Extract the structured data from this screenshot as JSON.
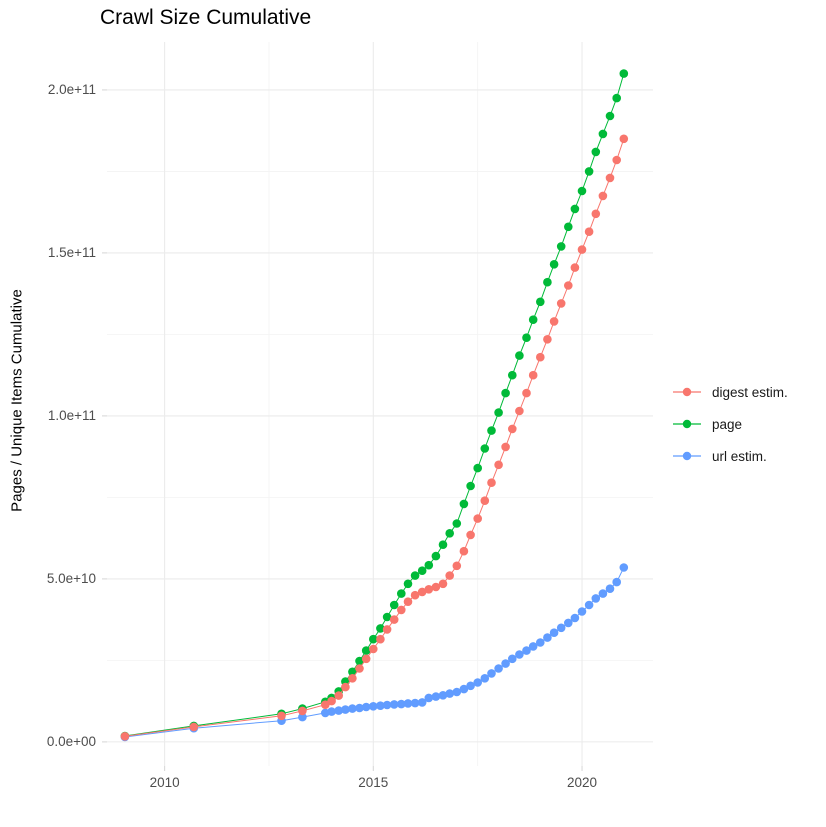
{
  "chart_data": {
    "type": "line",
    "title": "Crawl Size Cumulative",
    "xlabel": "",
    "ylabel": "Pages / Unique Items Cumulative",
    "legend_position": "right",
    "grid": true,
    "xlim": [
      2008.62,
      2021.7
    ],
    "ylim": [
      -7400000000.0,
      214700000000.0
    ],
    "x_ticks": {
      "values": [
        2010,
        2015,
        2020
      ],
      "labels": [
        "2010",
        "2015",
        "2020"
      ],
      "minor": [
        2012.5,
        2017.5
      ]
    },
    "y_ticks": {
      "values": [
        0,
        50000000000.0,
        100000000000.0,
        150000000000.0,
        200000000000.0
      ],
      "labels": [
        "0.0e+00",
        "5.0e+10",
        "1.0e+11",
        "1.5e+11",
        "2.0e+11"
      ],
      "minor": [
        25000000000.0,
        75000000000.0,
        125000000000.0,
        175000000000.0
      ]
    },
    "style": {
      "grid_major_color": "#EBEBEB",
      "grid_minor_color": "#F3F3F3",
      "tick_color": "#D9D9D9",
      "tick_text_color": "#4D4D4D",
      "title_color": "#000000",
      "background": "#FFFFFF"
    },
    "series": [
      {
        "name": "digest estim.",
        "color": "#F8766D",
        "points": [
          [
            2009.05,
            1700000000.0
          ],
          [
            2010.7,
            4600000000.0
          ],
          [
            2012.8,
            8000000000.0
          ],
          [
            2013.3,
            9500000000.0
          ],
          [
            2013.85,
            11400000000.0
          ],
          [
            2014.0,
            12500000000.0
          ],
          [
            2014.17,
            14200000000.0
          ],
          [
            2014.33,
            16800000000.0
          ],
          [
            2014.5,
            19500000000.0
          ],
          [
            2014.67,
            22500000000.0
          ],
          [
            2014.83,
            25500000000.0
          ],
          [
            2015.0,
            28500000000.0
          ],
          [
            2015.17,
            31500000000.0
          ],
          [
            2015.33,
            34500000000.0
          ],
          [
            2015.5,
            37500000000.0
          ],
          [
            2015.67,
            40500000000.0
          ],
          [
            2015.83,
            43000000000.0
          ],
          [
            2016.0,
            45000000000.0
          ],
          [
            2016.17,
            46000000000.0
          ],
          [
            2016.33,
            46800000000.0
          ],
          [
            2016.5,
            47500000000.0
          ],
          [
            2016.67,
            48500000000.0
          ],
          [
            2016.83,
            51000000000.0
          ],
          [
            2017.0,
            54000000000.0
          ],
          [
            2017.17,
            58500000000.0
          ],
          [
            2017.33,
            63500000000.0
          ],
          [
            2017.5,
            68500000000.0
          ],
          [
            2017.67,
            74000000000.0
          ],
          [
            2017.83,
            79500000000.0
          ],
          [
            2018.0,
            85000000000.0
          ],
          [
            2018.17,
            90500000000.0
          ],
          [
            2018.33,
            96000000000.0
          ],
          [
            2018.5,
            101500000000.0
          ],
          [
            2018.67,
            107000000000.0
          ],
          [
            2018.83,
            112500000000.0
          ],
          [
            2019.0,
            118000000000.0
          ],
          [
            2019.17,
            123500000000.0
          ],
          [
            2019.33,
            129000000000.0
          ],
          [
            2019.5,
            134500000000.0
          ],
          [
            2019.67,
            140000000000.0
          ],
          [
            2019.83,
            145500000000.0
          ],
          [
            2020.0,
            151000000000.0
          ],
          [
            2020.17,
            156500000000.0
          ],
          [
            2020.33,
            162000000000.0
          ],
          [
            2020.5,
            167500000000.0
          ],
          [
            2020.67,
            173000000000.0
          ],
          [
            2020.83,
            178500000000.0
          ],
          [
            2021.0,
            185000000000.0
          ]
        ]
      },
      {
        "name": "page",
        "color": "#00BA38",
        "points": [
          [
            2009.05,
            1800000000.0
          ],
          [
            2010.7,
            4900000000.0
          ],
          [
            2012.8,
            8600000000.0
          ],
          [
            2013.3,
            10200000000.0
          ],
          [
            2013.85,
            12300000000.0
          ],
          [
            2014.0,
            13500000000.0
          ],
          [
            2014.17,
            15500000000.0
          ],
          [
            2014.33,
            18500000000.0
          ],
          [
            2014.5,
            21500000000.0
          ],
          [
            2014.67,
            24800000000.0
          ],
          [
            2014.83,
            28000000000.0
          ],
          [
            2015.0,
            31500000000.0
          ],
          [
            2015.17,
            34800000000.0
          ],
          [
            2015.33,
            38300000000.0
          ],
          [
            2015.5,
            42000000000.0
          ],
          [
            2015.67,
            45500000000.0
          ],
          [
            2015.83,
            48500000000.0
          ],
          [
            2016.0,
            51000000000.0
          ],
          [
            2016.17,
            52500000000.0
          ],
          [
            2016.33,
            54200000000.0
          ],
          [
            2016.5,
            57000000000.0
          ],
          [
            2016.67,
            60500000000.0
          ],
          [
            2016.83,
            64000000000.0
          ],
          [
            2017.0,
            67000000000.0
          ],
          [
            2017.17,
            73000000000.0
          ],
          [
            2017.33,
            78500000000.0
          ],
          [
            2017.5,
            84000000000.0
          ],
          [
            2017.67,
            90000000000.0
          ],
          [
            2017.83,
            95500000000.0
          ],
          [
            2018.0,
            101000000000.0
          ],
          [
            2018.17,
            107000000000.0
          ],
          [
            2018.33,
            112500000000.0
          ],
          [
            2018.5,
            118500000000.0
          ],
          [
            2018.67,
            124000000000.0
          ],
          [
            2018.83,
            129500000000.0
          ],
          [
            2019.0,
            135000000000.0
          ],
          [
            2019.17,
            141000000000.0
          ],
          [
            2019.33,
            146500000000.0
          ],
          [
            2019.5,
            152000000000.0
          ],
          [
            2019.67,
            158000000000.0
          ],
          [
            2019.83,
            163500000000.0
          ],
          [
            2020.0,
            169000000000.0
          ],
          [
            2020.17,
            175000000000.0
          ],
          [
            2020.33,
            181000000000.0
          ],
          [
            2020.5,
            186500000000.0
          ],
          [
            2020.67,
            192000000000.0
          ],
          [
            2020.83,
            197500000000.0
          ],
          [
            2021.0,
            205000000000.0
          ]
        ]
      },
      {
        "name": "url estim.",
        "color": "#619CFF",
        "points": [
          [
            2009.05,
            1500000000.0
          ],
          [
            2010.7,
            4200000000.0
          ],
          [
            2012.8,
            6500000000.0
          ],
          [
            2013.3,
            7600000000.0
          ],
          [
            2013.85,
            8900000000.0
          ],
          [
            2014.0,
            9300000000.0
          ],
          [
            2014.17,
            9600000000.0
          ],
          [
            2014.33,
            9900000000.0
          ],
          [
            2014.5,
            10200000000.0
          ],
          [
            2014.67,
            10400000000.0
          ],
          [
            2014.83,
            10700000000.0
          ],
          [
            2015.0,
            10900000000.0
          ],
          [
            2015.17,
            11100000000.0
          ],
          [
            2015.33,
            11300000000.0
          ],
          [
            2015.5,
            11500000000.0
          ],
          [
            2015.67,
            11600000000.0
          ],
          [
            2015.83,
            11800000000.0
          ],
          [
            2016.0,
            11900000000.0
          ],
          [
            2016.17,
            12100000000.0
          ],
          [
            2016.33,
            13500000000.0
          ],
          [
            2016.5,
            13900000000.0
          ],
          [
            2016.67,
            14300000000.0
          ],
          [
            2016.83,
            14800000000.0
          ],
          [
            2017.0,
            15300000000.0
          ],
          [
            2017.17,
            16200000000.0
          ],
          [
            2017.33,
            17200000000.0
          ],
          [
            2017.5,
            18200000000.0
          ],
          [
            2017.67,
            19500000000.0
          ],
          [
            2017.83,
            21000000000.0
          ],
          [
            2018.0,
            22500000000.0
          ],
          [
            2018.17,
            24000000000.0
          ],
          [
            2018.33,
            25500000000.0
          ],
          [
            2018.5,
            26800000000.0
          ],
          [
            2018.67,
            28000000000.0
          ],
          [
            2018.83,
            29300000000.0
          ],
          [
            2019.0,
            30500000000.0
          ],
          [
            2019.17,
            32000000000.0
          ],
          [
            2019.33,
            33500000000.0
          ],
          [
            2019.5,
            35000000000.0
          ],
          [
            2019.67,
            36500000000.0
          ],
          [
            2019.83,
            38000000000.0
          ],
          [
            2020.0,
            40000000000.0
          ],
          [
            2020.17,
            42000000000.0
          ],
          [
            2020.33,
            44000000000.0
          ],
          [
            2020.5,
            45500000000.0
          ],
          [
            2020.67,
            47000000000.0
          ],
          [
            2020.83,
            49000000000.0
          ],
          [
            2021.0,
            53500000000.0
          ]
        ]
      }
    ]
  }
}
